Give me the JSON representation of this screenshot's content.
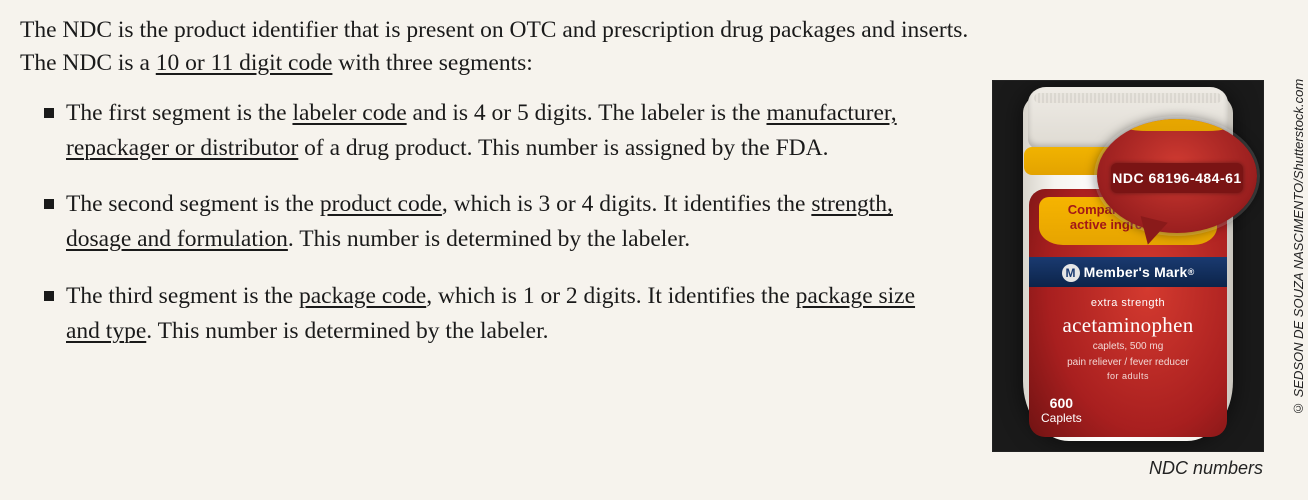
{
  "intro": {
    "line1": "The NDC is the product identifier that is present on OTC and prescription drug packages and inserts.",
    "line2_pre": "The NDC is a ",
    "line2_u": "10 or 11 digit code",
    "line2_post": " with three segments:"
  },
  "bullets": [
    {
      "p1a": "The first segment is the ",
      "u1": "labeler code",
      "p1b": " and is 4 or 5 digits. The labeler is the ",
      "u2": "manufacturer, repackager or distributor",
      "p1c": " of a drug product. This number is assigned by the FDA."
    },
    {
      "p1a": "The second segment is the ",
      "u1": "product code",
      "p1b": ", which is 3 or 4 digits. It identifies the ",
      "u2": "strength, dosage and formulation",
      "p1c": ". This number is determined by the labeler."
    },
    {
      "p1a": "The third segment is the ",
      "u1": "package code",
      "p1b": ", which is 1 or 2 digits. It identifies the ",
      "u2": "package size and type",
      "p1c": ". This number is determined by the labeler."
    }
  ],
  "figure": {
    "ndc": "NDC 68196-484-61",
    "compare_line1": "Compare to Tylenol",
    "compare_line2": "active ingredient™",
    "brand": "Member's Mark",
    "brand_suffix": "®",
    "extra": "extra strength",
    "drug": "acetaminophen",
    "sub1": "caplets, 500 mg",
    "sub2": "pain reliever / fever reducer",
    "sub3": "for adults",
    "count_n": "600",
    "count_label": "Caplets",
    "caption": "NDC numbers",
    "credit": "© SEDSON DE SOUZA NASCIMENTO/Shutterstock.com"
  }
}
